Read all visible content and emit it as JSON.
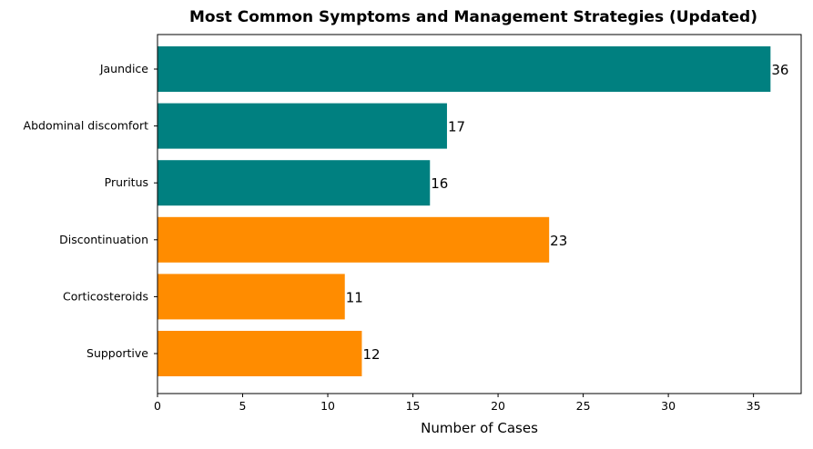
{
  "chart_data": {
    "type": "bar",
    "orientation": "horizontal",
    "title": "Most Common Symptoms and Management Strategies (Updated)",
    "xlabel": "Number of Cases",
    "ylabel": "",
    "xlim": [
      0,
      37.8
    ],
    "xticks": [
      0,
      5,
      10,
      15,
      20,
      25,
      30,
      35
    ],
    "grid": false,
    "categories": [
      "Jaundice",
      "Abdominal discomfort",
      "Pruritus",
      "Discontinuation",
      "Corticosteroids",
      "Supportive"
    ],
    "values": [
      36,
      17,
      16,
      23,
      11,
      12
    ],
    "bar_colors": [
      "#008080",
      "#008080",
      "#008080",
      "#ff8c00",
      "#ff8c00",
      "#ff8c00"
    ]
  }
}
